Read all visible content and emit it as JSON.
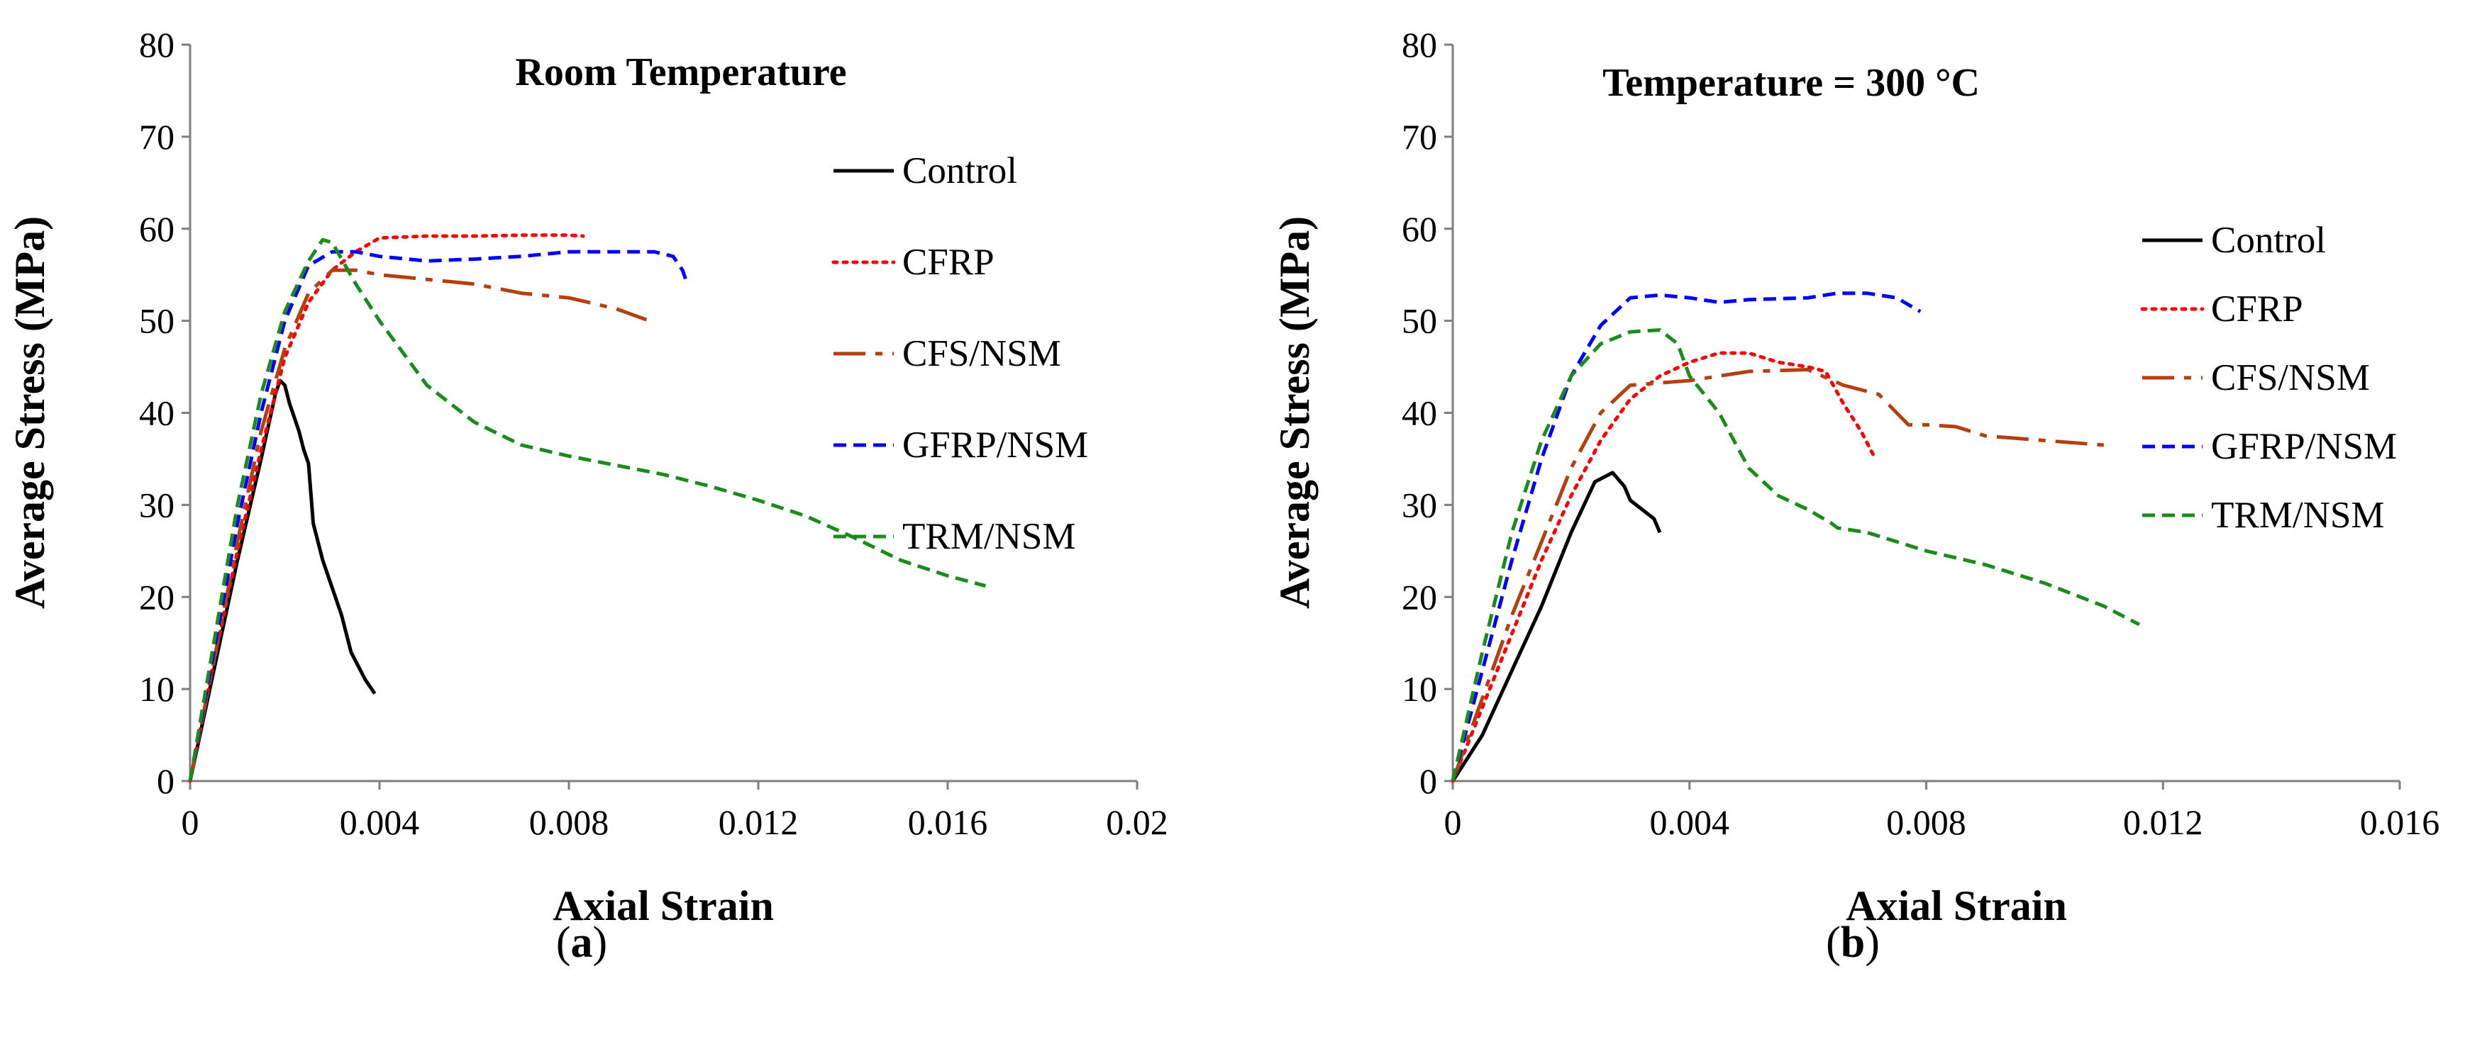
{
  "chart_data": [
    {
      "type": "line",
      "panel_label": "a",
      "title": "Room Temperature",
      "xlabel": "Axial Strain",
      "ylabel": "Average Stress (MPa)",
      "xlim": [
        0,
        0.02
      ],
      "ylim": [
        0,
        80
      ],
      "xticks": [
        "0",
        "0.004",
        "0.008",
        "0.012",
        "0.016",
        "0.02"
      ],
      "yticks": [
        "0",
        "10",
        "20",
        "30",
        "40",
        "50",
        "60",
        "70",
        "80"
      ],
      "grid": false,
      "legend_position": "right",
      "series": [
        {
          "name": "Control",
          "color": "#000000",
          "style": "solid",
          "points": [
            [
              0,
              0
            ],
            [
              0.0005,
              12
            ],
            [
              0.001,
              24
            ],
            [
              0.0015,
              35
            ],
            [
              0.0018,
              42
            ],
            [
              0.0019,
              43.5
            ],
            [
              0.002,
              43
            ],
            [
              0.0021,
              41
            ],
            [
              0.0022,
              39.5
            ],
            [
              0.0023,
              38
            ],
            [
              0.0024,
              36
            ],
            [
              0.0025,
              34.5
            ],
            [
              0.0026,
              28
            ],
            [
              0.0028,
              24
            ],
            [
              0.003,
              21
            ],
            [
              0.0032,
              18
            ],
            [
              0.0034,
              14
            ],
            [
              0.0037,
              11
            ],
            [
              0.0039,
              9.5
            ]
          ]
        },
        {
          "name": "CFRP",
          "color": "#ff0000",
          "style": "dotted",
          "points": [
            [
              0,
              0
            ],
            [
              0.0005,
              13
            ],
            [
              0.001,
              25
            ],
            [
              0.0015,
              36
            ],
            [
              0.002,
              46
            ],
            [
              0.0025,
              52
            ],
            [
              0.003,
              55.5
            ],
            [
              0.0035,
              57.5
            ],
            [
              0.004,
              59
            ],
            [
              0.005,
              59.2
            ],
            [
              0.006,
              59.2
            ],
            [
              0.007,
              59.3
            ],
            [
              0.008,
              59.3
            ],
            [
              0.0083,
              59.2
            ]
          ]
        },
        {
          "name": "CFS/NSM",
          "color": "#b5400f",
          "style": "longdash",
          "points": [
            [
              0,
              0
            ],
            [
              0.0005,
              13
            ],
            [
              0.001,
              26
            ],
            [
              0.0015,
              38
            ],
            [
              0.002,
              47
            ],
            [
              0.0025,
              53
            ],
            [
              0.003,
              55.5
            ],
            [
              0.0035,
              55.5
            ],
            [
              0.004,
              55
            ],
            [
              0.005,
              54.5
            ],
            [
              0.006,
              54
            ],
            [
              0.007,
              53
            ],
            [
              0.008,
              52.5
            ],
            [
              0.009,
              51.3
            ],
            [
              0.0097,
              50
            ]
          ]
        },
        {
          "name": "GFRP/NSM",
          "color": "#0000ff",
          "style": "dashed",
          "points": [
            [
              0,
              0
            ],
            [
              0.0005,
              14
            ],
            [
              0.001,
              28
            ],
            [
              0.0015,
              40
            ],
            [
              0.002,
              50
            ],
            [
              0.0025,
              56
            ],
            [
              0.003,
              57.5
            ],
            [
              0.0035,
              57.5
            ],
            [
              0.004,
              57
            ],
            [
              0.005,
              56.5
            ],
            [
              0.006,
              56.7
            ],
            [
              0.007,
              57
            ],
            [
              0.008,
              57.5
            ],
            [
              0.009,
              57.5
            ],
            [
              0.0098,
              57.5
            ],
            [
              0.0102,
              57
            ],
            [
              0.0104,
              55.5
            ],
            [
              0.0105,
              54
            ]
          ]
        },
        {
          "name": "TRM/NSM",
          "color": "#1a8c1a",
          "style": "dashed",
          "points": [
            [
              0,
              0
            ],
            [
              0.0005,
              15
            ],
            [
              0.001,
              30
            ],
            [
              0.0015,
              42
            ],
            [
              0.002,
              51
            ],
            [
              0.0025,
              56.5
            ],
            [
              0.0028,
              58.8
            ],
            [
              0.003,
              58.5
            ],
            [
              0.0035,
              54
            ],
            [
              0.004,
              50
            ],
            [
              0.005,
              43
            ],
            [
              0.006,
              39
            ],
            [
              0.007,
              36.5
            ],
            [
              0.008,
              35.3
            ],
            [
              0.009,
              34.3
            ],
            [
              0.01,
              33.3
            ],
            [
              0.011,
              32
            ],
            [
              0.012,
              30.5
            ],
            [
              0.013,
              28.8
            ],
            [
              0.014,
              26.5
            ],
            [
              0.015,
              24
            ],
            [
              0.016,
              22.3
            ],
            [
              0.0168,
              21.2
            ]
          ]
        }
      ]
    },
    {
      "type": "line",
      "panel_label": "b",
      "title": "Temperature = 300 °C",
      "xlabel": "Axial Strain",
      "ylabel": "Average Stress (MPa)",
      "xlim": [
        0,
        0.016
      ],
      "ylim": [
        0,
        80
      ],
      "xticks": [
        "0",
        "0.004",
        "0.008",
        "0.012",
        "0.016"
      ],
      "yticks": [
        "0",
        "10",
        "20",
        "30",
        "40",
        "50",
        "60",
        "70",
        "80"
      ],
      "grid": false,
      "legend_position": "right",
      "series": [
        {
          "name": "Control",
          "color": "#000000",
          "style": "solid",
          "points": [
            [
              0,
              0
            ],
            [
              0.0002,
              2
            ],
            [
              0.0005,
              5
            ],
            [
              0.001,
              12
            ],
            [
              0.0015,
              19
            ],
            [
              0.002,
              27
            ],
            [
              0.0024,
              32.5
            ],
            [
              0.0027,
              33.5
            ],
            [
              0.0029,
              32
            ],
            [
              0.003,
              30.5
            ],
            [
              0.0032,
              29.5
            ],
            [
              0.0034,
              28.5
            ],
            [
              0.0035,
              27
            ]
          ]
        },
        {
          "name": "CFRP",
          "color": "#ff0000",
          "style": "dotted",
          "points": [
            [
              0,
              0
            ],
            [
              0.0005,
              8
            ],
            [
              0.001,
              16
            ],
            [
              0.0015,
              24
            ],
            [
              0.002,
              31
            ],
            [
              0.0025,
              37
            ],
            [
              0.003,
              41.5
            ],
            [
              0.0035,
              44
            ],
            [
              0.004,
              45.5
            ],
            [
              0.0045,
              46.5
            ],
            [
              0.005,
              46.5
            ],
            [
              0.0055,
              45.5
            ],
            [
              0.006,
              45
            ],
            [
              0.0063,
              44.5
            ],
            [
              0.0066,
              41
            ],
            [
              0.0069,
              38
            ],
            [
              0.0071,
              35.5
            ]
          ]
        },
        {
          "name": "CFS/NSM",
          "color": "#b5400f",
          "style": "longdash",
          "points": [
            [
              0,
              0
            ],
            [
              0.0005,
              9
            ],
            [
              0.001,
              18
            ],
            [
              0.0015,
              26
            ],
            [
              0.002,
              34
            ],
            [
              0.0025,
              40
            ],
            [
              0.003,
              43
            ],
            [
              0.004,
              43.5
            ],
            [
              0.005,
              44.5
            ],
            [
              0.006,
              44.7
            ],
            [
              0.0066,
              43
            ],
            [
              0.0072,
              42
            ],
            [
              0.0075,
              40
            ],
            [
              0.0077,
              38.7
            ],
            [
              0.008,
              38.7
            ],
            [
              0.0085,
              38.5
            ],
            [
              0.009,
              37.5
            ],
            [
              0.01,
              37
            ],
            [
              0.011,
              36.5
            ]
          ]
        },
        {
          "name": "GFRP/NSM",
          "color": "#0000ff",
          "style": "dashed",
          "points": [
            [
              0,
              0
            ],
            [
              0.0005,
              12
            ],
            [
              0.001,
              24
            ],
            [
              0.0015,
              35
            ],
            [
              0.002,
              44
            ],
            [
              0.0025,
              49.5
            ],
            [
              0.003,
              52.5
            ],
            [
              0.0035,
              52.8
            ],
            [
              0.004,
              52.5
            ],
            [
              0.0045,
              52
            ],
            [
              0.005,
              52.3
            ],
            [
              0.006,
              52.5
            ],
            [
              0.0065,
              53
            ],
            [
              0.007,
              53
            ],
            [
              0.0075,
              52.5
            ],
            [
              0.0079,
              51
            ]
          ]
        },
        {
          "name": "TRM/NSM",
          "color": "#1a8c1a",
          "style": "dashed",
          "points": [
            [
              0,
              0
            ],
            [
              0.0005,
              14
            ],
            [
              0.001,
              27
            ],
            [
              0.0015,
              37
            ],
            [
              0.002,
              44
            ],
            [
              0.0025,
              47.5
            ],
            [
              0.003,
              48.8
            ],
            [
              0.0035,
              49
            ],
            [
              0.0038,
              47.5
            ],
            [
              0.004,
              44
            ],
            [
              0.0045,
              40
            ],
            [
              0.005,
              34
            ],
            [
              0.0055,
              31
            ],
            [
              0.006,
              29.5
            ],
            [
              0.0064,
              28
            ],
            [
              0.0065,
              27.5
            ],
            [
              0.007,
              27
            ],
            [
              0.008,
              25
            ],
            [
              0.009,
              23.5
            ],
            [
              0.01,
              21.5
            ],
            [
              0.011,
              19
            ],
            [
              0.0113,
              18
            ],
            [
              0.0116,
              17
            ]
          ]
        }
      ]
    }
  ]
}
